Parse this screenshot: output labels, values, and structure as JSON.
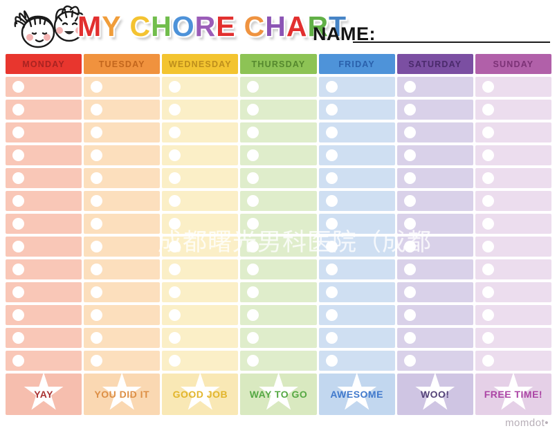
{
  "header": {
    "name_label": "NAME:",
    "illustration": "two-kids-faces-illustration",
    "title": {
      "words": [
        {
          "letters": [
            {
              "ch": "M",
              "color": "#e2302f"
            },
            {
              "ch": "Y",
              "color": "#f09d3a"
            }
          ]
        },
        {
          "letters": [
            {
              "ch": "C",
              "color": "#f4c331"
            },
            {
              "ch": "H",
              "color": "#71bd4c"
            },
            {
              "ch": "O",
              "color": "#4d92d9"
            },
            {
              "ch": "R",
              "color": "#9a5cb8"
            },
            {
              "ch": "E",
              "color": "#e2302f"
            }
          ]
        },
        {
          "letters": [
            {
              "ch": "C",
              "color": "#ef9340"
            },
            {
              "ch": "H",
              "color": "#8b54b4"
            },
            {
              "ch": "A",
              "color": "#e2302f"
            },
            {
              "ch": "R",
              "color": "#61b046"
            },
            {
              "ch": "T",
              "color": "#4684c6"
            }
          ]
        }
      ]
    }
  },
  "chart": {
    "rows_per_column": 13,
    "columns": [
      {
        "day": "MONDAY",
        "footer_label": "YAY",
        "header_bg": "#e8362e",
        "header_text": "#a82321",
        "cell_bg": "#f9c7b7",
        "footer_bg": "#f6beae",
        "footer_text_color": "#aa3332"
      },
      {
        "day": "TUESDAY",
        "footer_label": "YOU DID IT",
        "header_bg": "#f0923e",
        "header_text": "#c2661d",
        "cell_bg": "#fcdfbd",
        "footer_bg": "#fad8b2",
        "footer_text_color": "#dd8f45"
      },
      {
        "day": "WEDNESDAY",
        "footer_label": "GOOD JOB",
        "header_bg": "#f3c430",
        "header_text": "#bd8e1c",
        "cell_bg": "#fbefc7",
        "footer_bg": "#f9e8b5",
        "footer_text_color": "#e2b52b"
      },
      {
        "day": "THURSDAY",
        "footer_label": "WAY TO GO",
        "header_bg": "#8dc355",
        "header_text": "#55882e",
        "cell_bg": "#dfedcb",
        "footer_bg": "#d9e9c0",
        "footer_text_color": "#55a843"
      },
      {
        "day": "FRIDAY",
        "footer_label": "AWESOME",
        "header_bg": "#4e93d9",
        "header_text": "#2a60ab",
        "cell_bg": "#cfdff2",
        "footer_bg": "#c2d7ef",
        "footer_text_color": "#4079cc"
      },
      {
        "day": "SATURDAY",
        "footer_label": "WOO!",
        "header_bg": "#7b4fa2",
        "header_text": "#4a2a6b",
        "cell_bg": "#d9d1e9",
        "footer_bg": "#cfc5e3",
        "footer_text_color": "#544378"
      },
      {
        "day": "SUNDAY",
        "footer_label": "FREE TIME!",
        "header_bg": "#b160a9",
        "header_text": "#7c3276",
        "cell_bg": "#ecddee",
        "footer_bg": "#e5d0e7",
        "footer_text_color": "#ab44a4"
      }
    ]
  },
  "icons": {
    "star_glyph": "★",
    "kids": "two-kids-faces-illustration",
    "check_circle": "check-circle"
  },
  "overlay": {
    "watermark": "成都曙光男科医院（成都",
    "brand": "momdot•"
  }
}
